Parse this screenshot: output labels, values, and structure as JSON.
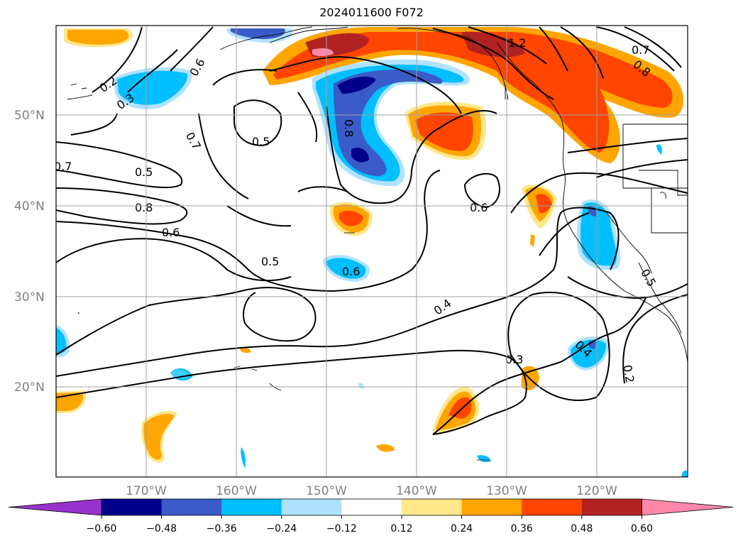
{
  "title": "2024011600 F072",
  "lat_labels": [
    "50°N",
    "40°N",
    "30°N",
    "20°N"
  ],
  "lon_labels": [
    "170°W",
    "160°W",
    "150°W",
    "140°W",
    "130°W",
    "120°W"
  ],
  "contour_labels": [
    "0.2",
    "0.3",
    "0.6",
    "0.7",
    "0.5",
    "0.8",
    "0.6",
    "0.5",
    "0.6",
    "0.4",
    "0.3",
    "0.4",
    "0.2",
    "1.2",
    "0.7",
    "0.8",
    "0.6",
    "0.8",
    "0.5",
    "0.7",
    "0.5"
  ],
  "colorbar": {
    "ticks": [
      "−0.60",
      "−0.48",
      "−0.36",
      "−0.24",
      "−0.12",
      "0.12",
      "0.24",
      "0.36",
      "0.48",
      "0.60"
    ],
    "colors": [
      "#9932cc",
      "#00008b",
      "#3a5bc8",
      "#00bfff",
      "#b0e2ff",
      "#ffffff",
      "#ffe78a",
      "#ffa500",
      "#ff4500",
      "#b22222",
      "#ff88aa"
    ]
  }
}
